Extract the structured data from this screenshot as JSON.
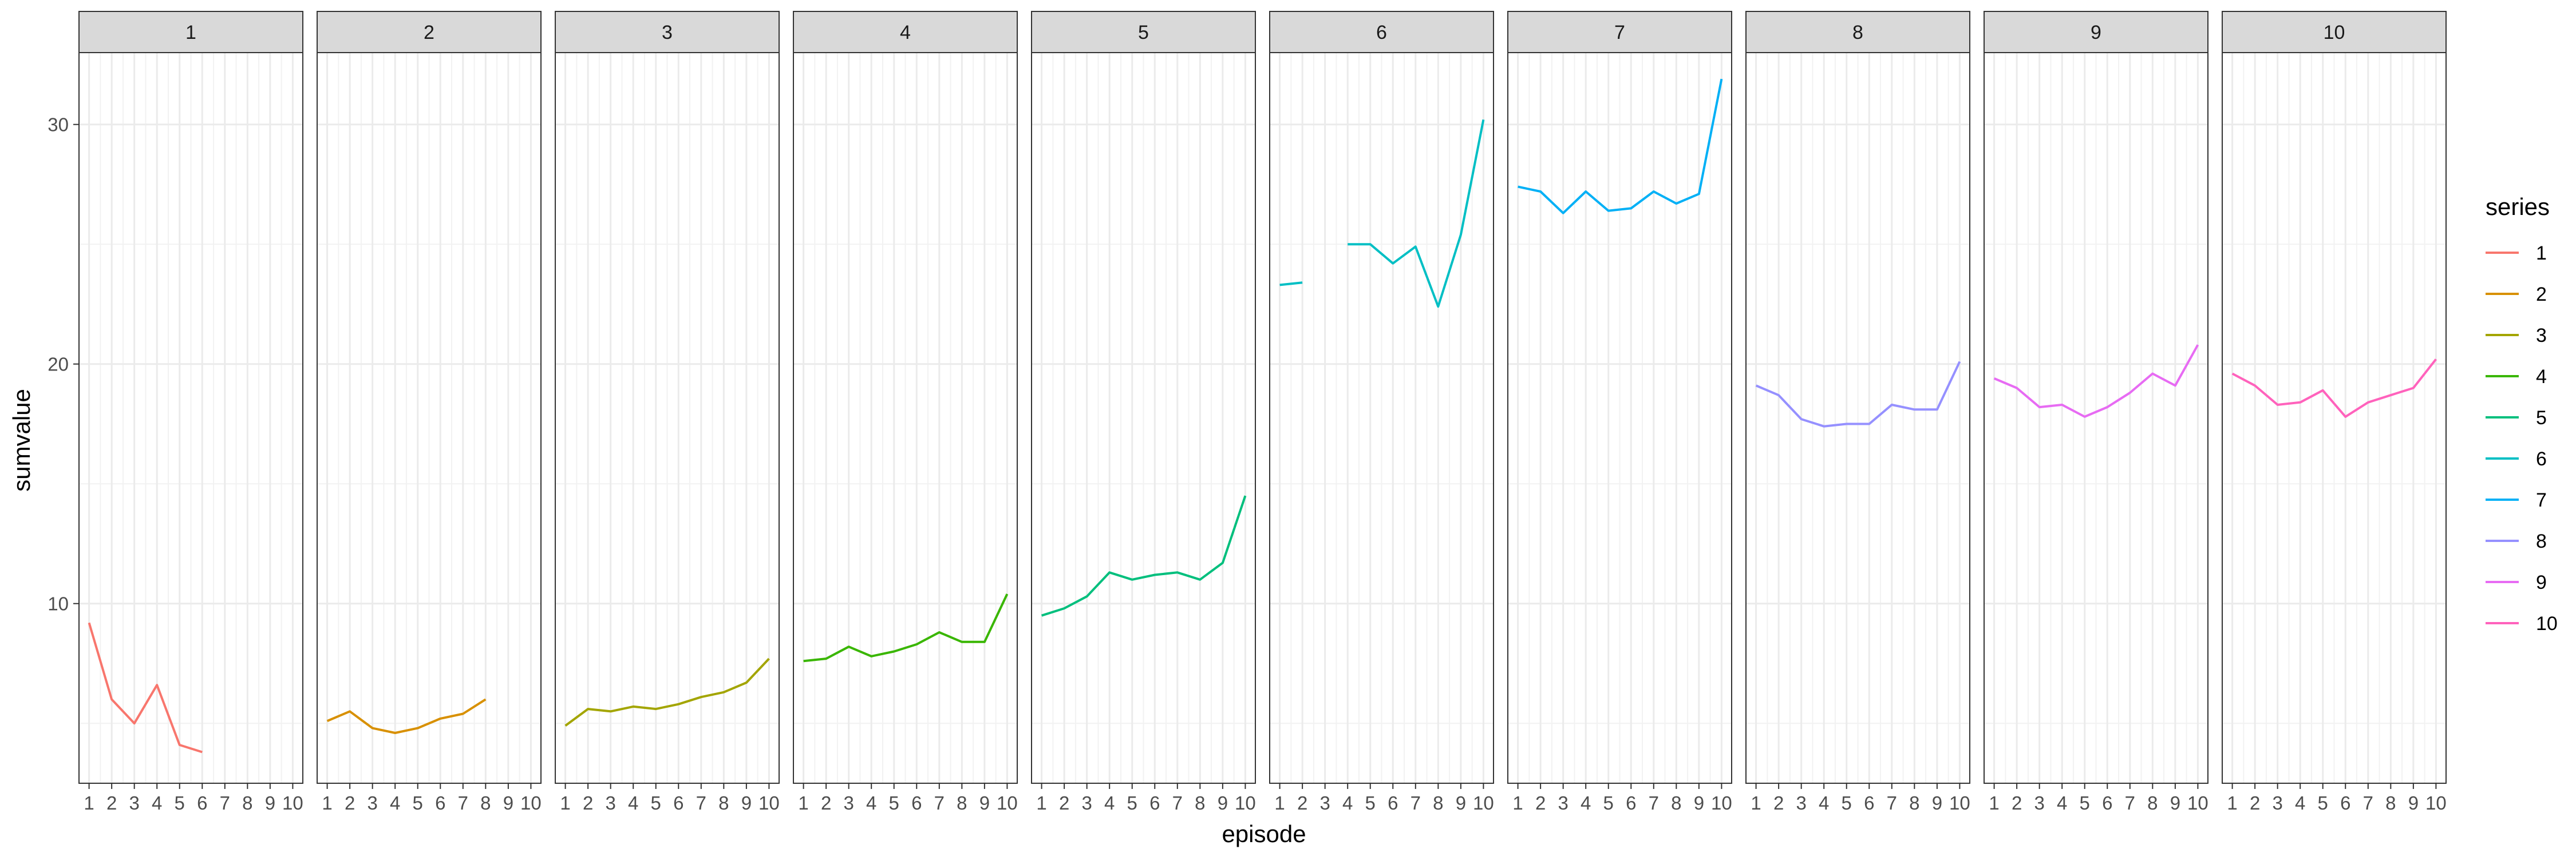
{
  "chart_data": {
    "type": "line",
    "facet_variable": "series",
    "panels": [
      "1",
      "2",
      "3",
      "4",
      "5",
      "6",
      "7",
      "8",
      "9",
      "10"
    ],
    "xlabel": "episode",
    "ylabel": "sumvalue",
    "x_ticks": [
      1,
      2,
      3,
      4,
      5,
      6,
      7,
      8,
      9,
      10
    ],
    "y_ticks": [
      10,
      20,
      30
    ],
    "xlim": [
      1,
      10
    ],
    "ylim": [
      2.5,
      33
    ],
    "grid": true,
    "legend": {
      "title": "series",
      "placement": "right",
      "entries": [
        "1",
        "2",
        "3",
        "4",
        "5",
        "6",
        "7",
        "8",
        "9",
        "10"
      ]
    },
    "series": [
      {
        "name": "1",
        "color": "#F8766D",
        "x": [
          1,
          2,
          3,
          4,
          5,
          6
        ],
        "values": [
          9.2,
          6.0,
          5.0,
          6.6,
          4.1,
          3.8
        ]
      },
      {
        "name": "2",
        "color": "#D89000",
        "x": [
          1,
          2,
          3,
          4,
          5,
          6,
          7,
          8
        ],
        "values": [
          5.1,
          5.5,
          4.8,
          4.6,
          4.8,
          5.2,
          5.4,
          6.0
        ]
      },
      {
        "name": "3",
        "color": "#A3A500",
        "x": [
          1,
          2,
          3,
          4,
          5,
          6,
          7,
          8,
          9,
          10
        ],
        "values": [
          4.9,
          5.6,
          5.5,
          5.7,
          5.6,
          5.8,
          6.1,
          6.3,
          6.7,
          7.7
        ]
      },
      {
        "name": "4",
        "color": "#39B600",
        "x": [
          1,
          2,
          3,
          4,
          5,
          6,
          7,
          8,
          9,
          10
        ],
        "values": [
          7.6,
          7.7,
          8.2,
          7.8,
          8.0,
          8.3,
          8.8,
          8.4,
          8.4,
          10.4
        ]
      },
      {
        "name": "5",
        "color": "#00BF7D",
        "x": [
          1,
          2,
          3,
          4,
          5,
          6,
          7,
          8,
          9,
          10
        ],
        "values": [
          9.5,
          9.8,
          10.3,
          11.3,
          11.0,
          11.2,
          11.3,
          11.0,
          11.7,
          14.5
        ]
      },
      {
        "name": "6",
        "color": "#00BFC4",
        "segments": [
          {
            "x": [
              1,
              2
            ],
            "values": [
              23.3,
              23.4
            ]
          },
          {
            "x": [
              4,
              5,
              6,
              7,
              8,
              9,
              10
            ],
            "values": [
              25.0,
              25.0,
              24.2,
              24.9,
              22.4,
              25.4,
              30.2
            ]
          }
        ]
      },
      {
        "name": "7",
        "color": "#00B0F6",
        "x": [
          1,
          2,
          3,
          4,
          5,
          6,
          7,
          8,
          9,
          10
        ],
        "values": [
          27.4,
          27.2,
          26.3,
          27.2,
          26.4,
          26.5,
          27.2,
          26.7,
          27.1,
          31.9
        ]
      },
      {
        "name": "8",
        "color": "#9590FF",
        "x": [
          1,
          2,
          3,
          4,
          5,
          6,
          7,
          8,
          9,
          10
        ],
        "values": [
          19.1,
          18.7,
          17.7,
          17.4,
          17.5,
          17.5,
          18.3,
          18.1,
          18.1,
          20.1
        ]
      },
      {
        "name": "9",
        "color": "#E76BF3",
        "x": [
          1,
          2,
          3,
          4,
          5,
          6,
          7,
          8,
          9,
          10
        ],
        "values": [
          19.4,
          19.0,
          18.2,
          18.3,
          17.8,
          18.2,
          18.8,
          19.6,
          19.1,
          20.8
        ]
      },
      {
        "name": "10",
        "color": "#FF62BC",
        "x": [
          1,
          2,
          3,
          4,
          5,
          6,
          7,
          8,
          9,
          10
        ],
        "values": [
          19.6,
          19.1,
          18.3,
          18.4,
          18.9,
          17.8,
          18.4,
          18.7,
          19.0,
          20.2
        ]
      }
    ]
  }
}
